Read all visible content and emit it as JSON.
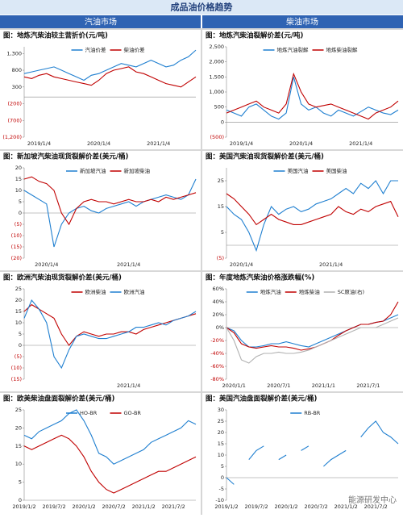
{
  "header": {
    "title": "成品油价格趋势",
    "left": "汽油市场",
    "right": "柴油市场",
    "watermark": "能源研发中心"
  },
  "chart_data": [
    {
      "type": "line",
      "title": "图：地炼汽柴油较主营折价(元/吨)",
      "negative_tick_color": "#c00000",
      "categories": [
        null,
        null,
        "2019/1/4",
        null,
        null,
        null,
        null,
        null,
        null,
        null,
        "2020/1/4",
        null,
        null,
        null,
        null,
        null,
        null,
        null,
        "2021/1/4",
        null,
        null,
        null,
        null,
        null
      ],
      "ylim": [
        -1200,
        1500
      ],
      "yticks": [
        {
          "value": 1300,
          "label": "1,300"
        },
        800,
        300,
        {
          "value": -200,
          "label": "(200)"
        },
        {
          "value": -700,
          "label": "(700)"
        },
        {
          "value": -1200,
          "label": "(1,200)"
        }
      ],
      "series": [
        {
          "name": "汽油价差",
          "color": "#1f7fd0",
          "values": [
            700,
            750,
            800,
            850,
            900,
            800,
            700,
            600,
            500,
            650,
            700,
            800,
            900,
            1000,
            950,
            900,
            1000,
            1100,
            1000,
            900,
            950,
            1100,
            1200,
            1400
          ]
        },
        {
          "name": "柴油价差",
          "color": "#c00000",
          "values": [
            600,
            550,
            650,
            700,
            600,
            550,
            500,
            450,
            400,
            350,
            500,
            700,
            800,
            850,
            900,
            750,
            700,
            600,
            500,
            400,
            350,
            300,
            450,
            600
          ]
        }
      ]
    },
    {
      "type": "line",
      "title": "图：地炼汽柴油裂解价差(元/吨)",
      "negative_tick_color": "#c00000",
      "categories": [
        null,
        null,
        "2019/1/4",
        null,
        null,
        null,
        null,
        null,
        null,
        null,
        "2020/1/4",
        null,
        null,
        null,
        null,
        null,
        null,
        null,
        "2021/1/4",
        null,
        null,
        null,
        null,
        null
      ],
      "ylim": [
        -500,
        2500
      ],
      "yticks": [
        {
          "value": 2500,
          "label": "2,500"
        },
        {
          "value": 2000,
          "label": "2,000"
        },
        {
          "value": 1500,
          "label": "1,500"
        },
        {
          "value": 1000,
          "label": "1,000"
        },
        500,
        0,
        {
          "value": -500,
          "label": "(500)"
        }
      ],
      "series": [
        {
          "name": "地炼汽油裂解",
          "color": "#1f7fd0",
          "values": [
            400,
            300,
            200,
            500,
            600,
            400,
            200,
            100,
            300,
            1500,
            600,
            400,
            500,
            300,
            200,
            400,
            300,
            200,
            350,
            500,
            400,
            300,
            250,
            400
          ]
        },
        {
          "name": "地炼柴油裂解",
          "color": "#c00000",
          "values": [
            300,
            400,
            500,
            600,
            700,
            500,
            400,
            300,
            600,
            1600,
            1000,
            600,
            500,
            550,
            600,
            500,
            400,
            300,
            200,
            100,
            300,
            400,
            500,
            700
          ]
        }
      ]
    },
    {
      "type": "line",
      "title": "图：新加坡汽柴油现货裂解价差(美元/桶)",
      "negative_tick_color": "#c00000",
      "categories": [
        null,
        null,
        null,
        "2020/1/4",
        null,
        null,
        null,
        null,
        null,
        null,
        null,
        null,
        null,
        null,
        "2021/1/4",
        null,
        null,
        null,
        null,
        null,
        null,
        null,
        null,
        null
      ],
      "ylim": [
        -20,
        20
      ],
      "yticks": [
        20,
        15,
        10,
        5,
        0,
        {
          "value": -5,
          "label": "(5)"
        },
        {
          "value": -10,
          "label": "(10)"
        },
        {
          "value": -15,
          "label": "(15)"
        },
        {
          "value": -20,
          "label": "(20)"
        }
      ],
      "series": [
        {
          "name": "新加坡汽油",
          "color": "#1f7fd0",
          "values": [
            10,
            8,
            6,
            4,
            -15,
            -5,
            0,
            2,
            3,
            1,
            0,
            2,
            3,
            4,
            5,
            3,
            5,
            6,
            7,
            8,
            7,
            6,
            8,
            15
          ]
        },
        {
          "name": "新加坡柴油",
          "color": "#c00000",
          "values": [
            15,
            16,
            14,
            13,
            10,
            0,
            -5,
            2,
            5,
            6,
            5,
            5,
            4,
            5,
            6,
            5,
            5,
            6,
            5,
            7,
            6,
            7,
            8,
            9
          ]
        }
      ]
    },
    {
      "type": "line",
      "title": "图：美国汽柴油现货裂解价差(美元/桶)",
      "negative_tick_color": "#c00000",
      "categories": [
        null,
        null,
        "2020/1/4",
        null,
        null,
        null,
        null,
        null,
        null,
        null,
        null,
        null,
        null,
        null,
        "2021/1/4",
        null,
        null,
        null,
        null,
        null,
        null,
        null,
        null,
        null
      ],
      "ylim": [
        -5,
        30
      ],
      "yticks": [
        25,
        15,
        5,
        {
          "value": -5,
          "label": "(5)"
        }
      ],
      "series": [
        {
          "name": "美国汽油",
          "color": "#1f7fd0",
          "values": [
            15,
            12,
            10,
            5,
            -2,
            8,
            15,
            12,
            14,
            15,
            13,
            14,
            16,
            17,
            18,
            20,
            22,
            20,
            24,
            22,
            25,
            20,
            25,
            25
          ]
        },
        {
          "name": "美国柴油",
          "color": "#c00000",
          "values": [
            20,
            18,
            15,
            12,
            8,
            10,
            12,
            10,
            9,
            8,
            8,
            9,
            10,
            11,
            12,
            15,
            13,
            12,
            14,
            13,
            15,
            16,
            17,
            11
          ]
        }
      ]
    },
    {
      "type": "line",
      "title": "图：欧洲汽柴油现货裂解价差(美元/桶)",
      "negative_tick_color": "#c00000",
      "categories": [
        null,
        null,
        null,
        null,
        null,
        null,
        null,
        null,
        null,
        null,
        null,
        null,
        null,
        null,
        "2021/1/4",
        null,
        null,
        null,
        null,
        null,
        null,
        null,
        null,
        null
      ],
      "ylim": [
        -15,
        25
      ],
      "yticks": [
        25,
        20,
        15,
        10,
        5,
        0,
        {
          "value": -5,
          "label": "(5)"
        },
        {
          "value": -10,
          "label": "(10)"
        },
        {
          "value": -15,
          "label": "(15)"
        }
      ],
      "series": [
        {
          "name": "欧洲柴油",
          "color": "#c00000",
          "values": [
            15,
            18,
            16,
            14,
            12,
            5,
            0,
            4,
            6,
            5,
            4,
            5,
            5,
            6,
            6,
            5,
            7,
            8,
            9,
            10,
            11,
            12,
            13,
            14
          ]
        },
        {
          "name": "欧洲汽油",
          "color": "#1f7fd0",
          "values": [
            12,
            20,
            16,
            10,
            -5,
            -10,
            -2,
            4,
            5,
            4,
            3,
            3,
            4,
            5,
            6,
            8,
            8,
            9,
            10,
            9,
            11,
            12,
            13,
            15
          ]
        }
      ]
    },
    {
      "type": "line",
      "title": "图：年度地炼汽柴油价格涨跌幅(%)",
      "negative_tick_color": "#c00000",
      "categories": [
        null,
        "2020/1/1",
        null,
        null,
        null,
        null,
        null,
        "2020/7/1",
        null,
        null,
        null,
        null,
        null,
        "2021/1/1",
        null,
        null,
        null,
        null,
        null,
        "2021/7/1",
        null,
        null,
        null,
        null
      ],
      "ylim": [
        -80,
        60
      ],
      "yticks": [
        {
          "value": 60,
          "label": "60%"
        },
        {
          "value": 40,
          "label": "40%"
        },
        {
          "value": 20,
          "label": "20%"
        },
        {
          "value": 0,
          "label": "0%"
        },
        {
          "value": -20,
          "label": "-20%"
        },
        {
          "value": -40,
          "label": "-40%"
        },
        {
          "value": -60,
          "label": "-60%"
        },
        {
          "value": -80,
          "label": "-80%"
        }
      ],
      "series": [
        {
          "name": "地炼汽油",
          "color": "#1f7fd0",
          "values": [
            0,
            -5,
            -20,
            -30,
            -30,
            -28,
            -25,
            -25,
            -22,
            -25,
            -28,
            -30,
            -25,
            -20,
            -15,
            -10,
            -5,
            0,
            5,
            5,
            8,
            10,
            15,
            20
          ]
        },
        {
          "name": "地炼柴油",
          "color": "#c00000",
          "values": [
            0,
            -8,
            -25,
            -30,
            -32,
            -30,
            -28,
            -30,
            -30,
            -32,
            -35,
            -33,
            -30,
            -25,
            -20,
            -12,
            -5,
            0,
            5,
            5,
            8,
            10,
            20,
            40
          ]
        },
        {
          "name": "SC原油(右)",
          "color": "#b0b0b0",
          "values": [
            0,
            -20,
            -50,
            -55,
            -45,
            -40,
            -40,
            -38,
            -40,
            -40,
            -38,
            -35,
            -30,
            -25,
            -20,
            -15,
            -10,
            -5,
            0,
            0,
            0,
            5,
            10,
            15
          ]
        }
      ]
    },
    {
      "type": "line",
      "title": "图：欧美柴油盘面裂解价差(美元/桶)",
      "categories": [
        "2019/1/2",
        null,
        null,
        null,
        "2019/7/2",
        null,
        null,
        null,
        "2020/1/2",
        null,
        null,
        null,
        "2020/7/2",
        null,
        null,
        null,
        "2021/1/2",
        null,
        null,
        null,
        "2021/7/2",
        null,
        null,
        null
      ],
      "ylim": [
        0,
        25
      ],
      "yticks": [
        25,
        20,
        15,
        10,
        5,
        0
      ],
      "series": [
        {
          "name": "HO-BR",
          "color": "#1f7fd0",
          "values": [
            18,
            17,
            19,
            20,
            21,
            22,
            24,
            25,
            22,
            18,
            13,
            12,
            10,
            11,
            12,
            13,
            14,
            16,
            17,
            18,
            19,
            20,
            22,
            21
          ]
        },
        {
          "name": "GO-BR",
          "color": "#c00000",
          "values": [
            15,
            14,
            15,
            16,
            17,
            18,
            17,
            15,
            12,
            8,
            5,
            3,
            2,
            3,
            4,
            5,
            6,
            7,
            8,
            8,
            9,
            10,
            11,
            12
          ]
        }
      ]
    },
    {
      "type": "line",
      "title": "图：美国汽油盘面裂解价差(美元/桶)",
      "categories": [
        "2019/1/2",
        null,
        null,
        null,
        "2019/7/2",
        null,
        null,
        null,
        "2020/1/2",
        null,
        null,
        null,
        "2020/7/2",
        null,
        null,
        null,
        "2021/1/2",
        null,
        null,
        null,
        "2021/7/2",
        null,
        null,
        null
      ],
      "ylim": [
        -10,
        30
      ],
      "yticks": [
        30,
        25,
        20,
        15,
        10,
        5,
        0,
        -5,
        -10
      ],
      "series": [
        {
          "name": "RB-BR",
          "color": "#1f7fd0",
          "values": [
            0,
            -3,
            null,
            8,
            12,
            14,
            null,
            8,
            10,
            null,
            12,
            14,
            null,
            5,
            8,
            10,
            12,
            null,
            18,
            22,
            25,
            20,
            18,
            15
          ]
        }
      ]
    }
  ]
}
